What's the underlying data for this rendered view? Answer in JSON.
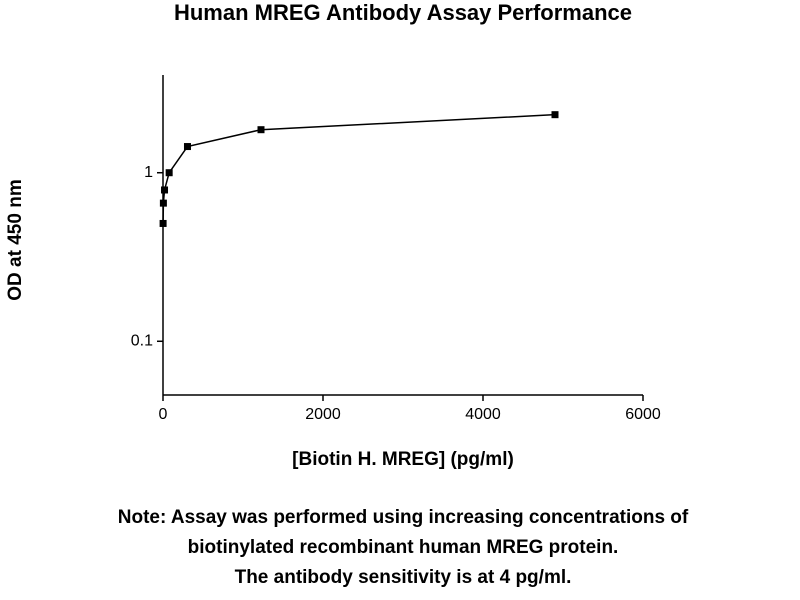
{
  "chart_data": {
    "type": "line",
    "title": "Human MREG Antibody Assay Performance",
    "x_label": "[Biotin H. MREG] (pg/ml)",
    "y_label": "OD at 450 nm",
    "x": [
      1.2,
      4.8,
      19,
      77,
      306,
      1225,
      4900
    ],
    "series": [
      {
        "color": "#000000",
        "values": [
          0.5,
          0.66,
          0.79,
          1.0,
          1.43,
          1.8,
          2.21
        ]
      }
    ],
    "xlim": [
      0,
      6000
    ],
    "xticks": [
      0,
      2000,
      4000,
      6000
    ],
    "ylim": [
      0.048,
      3.8
    ],
    "yticks": [
      0.1,
      1
    ],
    "yscale": "log",
    "grid": false,
    "note": [
      "Note: Assay was performed using increasing concentrations of",
      "biotinylated recombinant human MREG protein.",
      "The antibody sensitivity is at 4 pg/ml."
    ]
  }
}
